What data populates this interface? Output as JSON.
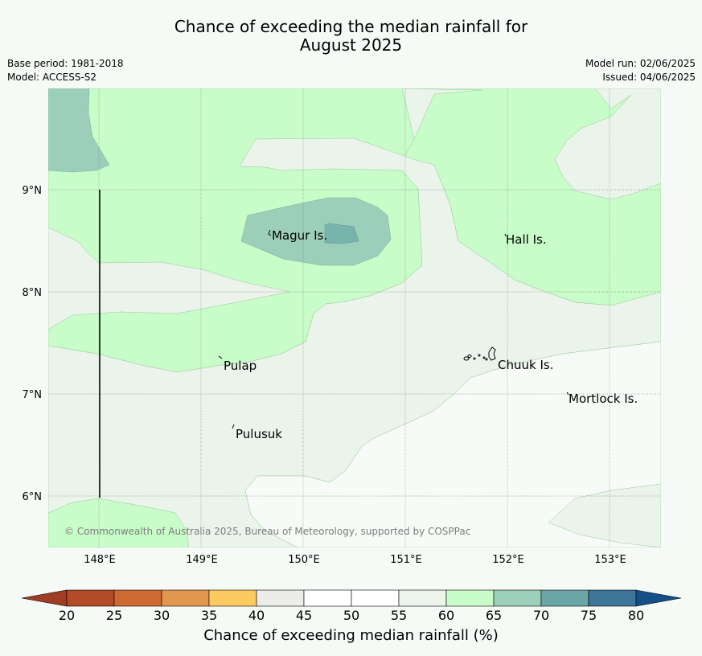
{
  "title": {
    "line1": "Chance of exceeding the median rainfall for",
    "line2": "August 2025"
  },
  "meta": {
    "base_period": "Base period: 1981-2018",
    "model": "Model: ACCESS-S2",
    "model_run": "Model run: 02/06/2025",
    "issued": "Issued: 04/06/2025"
  },
  "map": {
    "x_ticks": [
      "148°E",
      "149°E",
      "150°E",
      "151°E",
      "152°E",
      "153°E"
    ],
    "y_ticks": [
      "9°N",
      "8°N",
      "7°N",
      "6°N"
    ],
    "places": [
      "Magur Is.",
      "Hall Is.",
      "Pulap",
      "Chuuk Is.",
      "Mortlock Is.",
      "Pulusuk"
    ],
    "copyright": "© Commonwealth of Australia 2025, Bureau of Meteorology, supported by COSPPac"
  },
  "colorbar": {
    "label": "Chance of exceeding median rainfall (%)",
    "ticks": [
      "20",
      "25",
      "30",
      "35",
      "40",
      "45",
      "50",
      "55",
      "60",
      "65",
      "70",
      "75",
      "80"
    ],
    "colors": [
      "#b34a28",
      "#cf6a35",
      "#e2974f",
      "#fdca60",
      "#ececea",
      "#ffffff",
      "#ffffff",
      "#ecf4ec",
      "#c8fcc8",
      "#9ccfb9",
      "#6aa6a6",
      "#3e769a"
    ],
    "under_color": "#a13d24",
    "over_color": "#164f87"
  }
}
